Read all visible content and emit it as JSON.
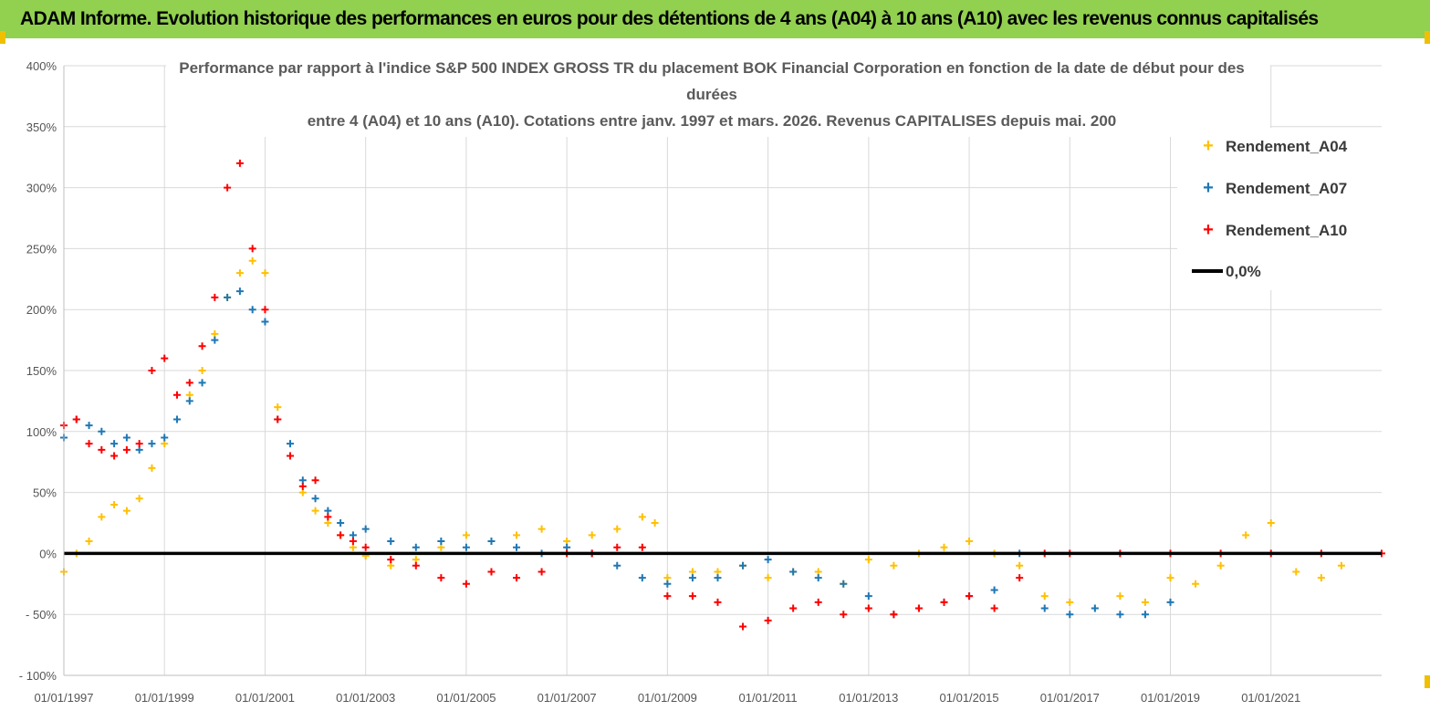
{
  "banner": {
    "title": "ADAM Informe. Evolution historique des performances en euros pour des détentions de 4 ans (A04) à 10 ans (A10) avec les revenus connus capitalisés"
  },
  "colors": {
    "banner_bg": "#92d050",
    "a04": "#ffc000",
    "a07": "#1f77b4",
    "a10": "#ff0000",
    "zero": "#000000"
  },
  "chart_data": {
    "type": "scatter",
    "title_lines": [
      "Performance par rapport à l'indice S&P 500 INDEX GROSS TR  du placement BOK Financial Corporation en fonction de la date de début pour des",
      "durées",
      "entre 4 (A04) et 10 ans (A10). Cotations entre janv. 1997 et mars. 2026. Revenus CAPITALISES depuis mai. 200"
    ],
    "ylim": [
      -100,
      400
    ],
    "y_ticks": [
      400,
      350,
      300,
      250,
      200,
      150,
      100,
      50,
      0,
      -50,
      -100
    ],
    "y_tick_labels": [
      "400%",
      "350%",
      "300%",
      "250%",
      "200%",
      "150%",
      "100%",
      "50%",
      "0%",
      "- 50%",
      "- 100%"
    ],
    "xlim": [
      1997.0,
      2023.2
    ],
    "x_ticks": [
      1997,
      1999,
      2001,
      2003,
      2005,
      2007,
      2009,
      2011,
      2013,
      2015,
      2017,
      2019,
      2021
    ],
    "x_tick_labels": [
      "01/01/1997",
      "01/01/1999",
      "01/01/2001",
      "01/01/2003",
      "01/01/2005",
      "01/01/2007",
      "01/01/2009",
      "01/01/2011",
      "01/01/2013",
      "01/01/2015",
      "01/01/2017",
      "01/01/2019",
      "01/01/2021"
    ],
    "legend": {
      "position": "right",
      "entries": [
        "Rendement_A04",
        "Rendement_A07",
        "Rendement_A10",
        "0,0%"
      ]
    },
    "series": [
      {
        "name": "Rendement_A04",
        "x": [
          1997.0,
          1997.25,
          1997.5,
          1997.75,
          1998.0,
          1998.25,
          1998.5,
          1998.75,
          1999.0,
          1999.25,
          1999.5,
          1999.75,
          2000.0,
          2000.25,
          2000.5,
          2000.75,
          2001.0,
          2001.25,
          2001.5,
          2001.75,
          2002.0,
          2002.25,
          2002.5,
          2002.75,
          2003.0,
          2003.5,
          2004.0,
          2004.5,
          2005.0,
          2005.5,
          2006.0,
          2006.5,
          2007.0,
          2007.5,
          2008.0,
          2008.5,
          2008.75,
          2009.0,
          2009.5,
          2010.0,
          2010.5,
          2011.0,
          2011.5,
          2012.0,
          2012.5,
          2013.0,
          2013.5,
          2014.0,
          2014.5,
          2015.0,
          2015.5,
          2016.0,
          2016.5,
          2017.0,
          2017.5,
          2018.0,
          2018.5,
          2019.0,
          2019.5,
          2020.0,
          2020.5,
          2021.0,
          2021.5,
          2022.0,
          2022.4
        ],
        "y": [
          -15,
          0,
          10,
          30,
          40,
          35,
          45,
          70,
          90,
          110,
          130,
          150,
          180,
          210,
          230,
          240,
          230,
          120,
          80,
          50,
          35,
          25,
          15,
          5,
          -2,
          -10,
          -5,
          5,
          15,
          10,
          15,
          20,
          10,
          15,
          20,
          30,
          25,
          -20,
          -15,
          -15,
          -10,
          -20,
          -15,
          -15,
          -25,
          -5,
          -10,
          0,
          5,
          10,
          0,
          -10,
          -35,
          -40,
          -45,
          -35,
          -40,
          -20,
          -25,
          -10,
          15,
          25,
          -15,
          -20,
          -10
        ]
      },
      {
        "name": "Rendement_A07",
        "x": [
          1997.0,
          1997.25,
          1997.5,
          1997.75,
          1998.0,
          1998.25,
          1998.5,
          1998.75,
          1999.0,
          1999.25,
          1999.5,
          1999.75,
          2000.0,
          2000.25,
          2000.5,
          2000.75,
          2001.0,
          2001.25,
          2001.5,
          2001.75,
          2002.0,
          2002.25,
          2002.5,
          2002.75,
          2003.0,
          2003.5,
          2004.0,
          2004.5,
          2005.0,
          2005.5,
          2006.0,
          2006.5,
          2007.0,
          2007.5,
          2008.0,
          2008.5,
          2009.0,
          2009.5,
          2010.0,
          2010.5,
          2011.0,
          2011.5,
          2012.0,
          2012.5,
          2013.0,
          2013.5,
          2014.0,
          2014.5,
          2015.0,
          2015.5,
          2016.0,
          2016.5,
          2017.0,
          2017.5,
          2018.0,
          2018.5,
          2019.0
        ],
        "y": [
          95,
          110,
          105,
          100,
          90,
          95,
          85,
          90,
          95,
          110,
          125,
          140,
          175,
          210,
          215,
          200,
          190,
          110,
          90,
          60,
          45,
          35,
          25,
          15,
          20,
          10,
          5,
          10,
          5,
          10,
          5,
          0,
          5,
          0,
          -10,
          -20,
          -25,
          -20,
          -20,
          -10,
          -5,
          -15,
          -20,
          -25,
          -35,
          -50,
          -45,
          -40,
          -35,
          -30,
          0,
          -45,
          -50,
          -45,
          -50,
          -50,
          -40
        ]
      },
      {
        "name": "Rendement_A10",
        "x": [
          1997.0,
          1997.25,
          1997.5,
          1997.75,
          1998.0,
          1998.25,
          1998.5,
          1998.75,
          1999.0,
          1999.25,
          1999.5,
          1999.75,
          2000.0,
          2000.25,
          2000.5,
          2000.75,
          2001.0,
          2001.25,
          2001.5,
          2001.75,
          2002.0,
          2002.25,
          2002.5,
          2002.75,
          2003.0,
          2003.5,
          2004.0,
          2004.5,
          2005.0,
          2005.5,
          2006.0,
          2006.5,
          2007.0,
          2007.5,
          2008.0,
          2008.5,
          2009.0,
          2009.5,
          2010.0,
          2010.5,
          2011.0,
          2011.5,
          2012.0,
          2012.5,
          2013.0,
          2013.5,
          2014.0,
          2014.5,
          2015.0,
          2015.5,
          2016.0,
          2016.5,
          2017.0,
          2018.0,
          2019.0,
          2020.0,
          2021.0,
          2022.0,
          2023.2
        ],
        "y": [
          105,
          110,
          90,
          85,
          80,
          85,
          90,
          150,
          160,
          130,
          140,
          170,
          210,
          300,
          320,
          250,
          200,
          110,
          80,
          55,
          60,
          30,
          15,
          10,
          5,
          -5,
          -10,
          -20,
          -25,
          -15,
          -20,
          -15,
          0,
          0,
          5,
          5,
          -35,
          -35,
          -40,
          -60,
          -55,
          -45,
          -40,
          -50,
          -45,
          -50,
          -45,
          -40,
          -35,
          -45,
          -20,
          0,
          0,
          0,
          0,
          0,
          0,
          0,
          0
        ]
      },
      {
        "name": "0,0%",
        "x": [
          1997.0,
          2023.2
        ],
        "y": [
          0,
          0
        ]
      }
    ]
  }
}
